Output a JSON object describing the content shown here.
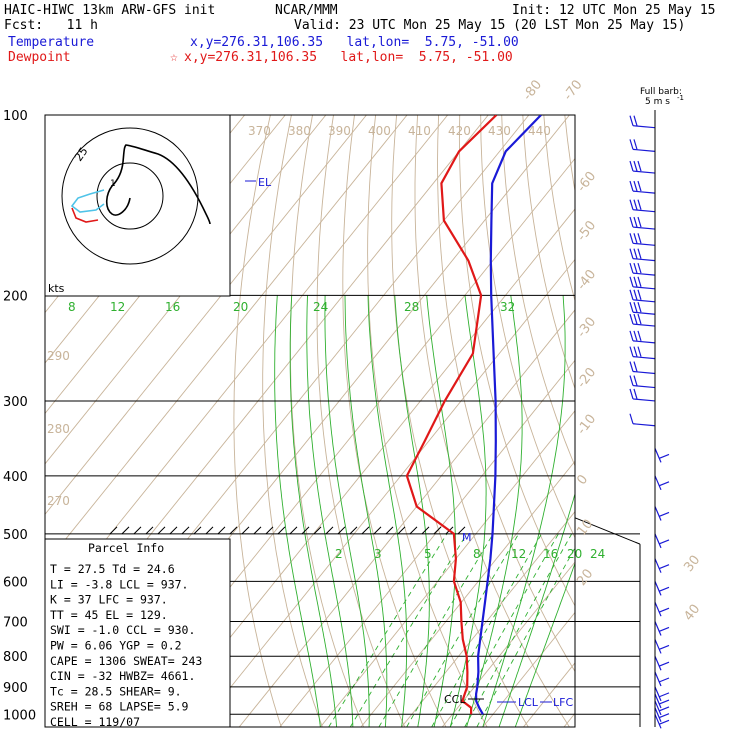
{
  "header": {
    "model": "HAIC-HIWC 13km ARW-GFS init",
    "center": "NCAR/MMM",
    "init": "Init: 12 UTC Mon 25 May 15",
    "fcst": "Fcst:   11 h",
    "valid": "Valid: 23 UTC Mon 25 May 15 (20 LST Mon 25 May 15)",
    "temp_label": "Temperature",
    "temp_loc": "x,y=276.31,106.35   lat,lon=  5.75, -51.00",
    "dew_label": "Dewpoint",
    "dew_loc": "x,y=276.31,106.35   lat,lon=  5.75, -51.00",
    "barb_title1": "Full barb:",
    "barb_title2": "5 m s",
    "barb_sup": "-1"
  },
  "hodograph": {
    "ring_label": "25",
    "units": "kts",
    "inner_label": "1"
  },
  "parcel": {
    "title": "Parcel Info",
    "rows": [
      "T  =   27.5 Td =  24.6",
      "LI =   -3.8 LCL =  937.",
      "K  =     37 LFC =  937.",
      "TT =     45 EL  =  129.",
      "SWI =  -1.0 CCL =  930.",
      "PW =   6.06 YGP =   0.2",
      "CAPE =  1306 SWEAT=  243",
      "CIN =   -32 HWBZ= 4661.",
      "Tc =   28.5 SHEAR=   9.",
      "SREH =   68 LAPSE=  5.9",
      "CELL = 119/07"
    ]
  },
  "markers": {
    "el": "EL",
    "ccl": "CCL",
    "lcl": "LCL",
    "lfc": "LFC",
    "m": "M"
  },
  "colors": {
    "temperature": "#1a1ad6",
    "dewpoint": "#e01818",
    "isotherm": "#c8b49a",
    "mixing_ratio": "#30b030",
    "saturated_adiabat": "#30b030",
    "dry_adiabat": "#c8b49a",
    "isobar": "#000000"
  },
  "chart_data": {
    "type": "line",
    "title": "",
    "xlabel": "",
    "ylabel": "",
    "y_scale": "log-pressure",
    "pressure_levels": [
      100,
      200,
      300,
      400,
      500,
      600,
      700,
      800,
      900,
      1000
    ],
    "isotherm_labels": [
      -80,
      -70,
      -60,
      -50,
      -40,
      -30,
      -20,
      -10,
      0,
      10,
      20,
      30,
      40
    ],
    "theta_labels": [
      370,
      380,
      390,
      400,
      410,
      420,
      430,
      440
    ],
    "theta_left_labels": [
      290,
      280,
      270
    ],
    "theta_e_labels": [
      8,
      12,
      16,
      20,
      24,
      28,
      32
    ],
    "mixing_ratio_labels": [
      2,
      3,
      5,
      8,
      12,
      16,
      20,
      24
    ],
    "series": [
      {
        "name": "Temperature",
        "pressure": [
          1000,
          975,
          950,
          925,
          900,
          850,
          800,
          750,
          700,
          650,
          600,
          550,
          500,
          450,
          400,
          350,
          300,
          250,
          200,
          175,
          150,
          130,
          115,
          100
        ],
        "temperature": [
          27.5,
          25.3,
          23.2,
          21.8,
          20.7,
          18.0,
          14.8,
          12.0,
          9.0,
          5.8,
          2.3,
          -1.5,
          -5.9,
          -11.0,
          -16.7,
          -23.5,
          -31.5,
          -41.4,
          -53.5,
          -60.5,
          -68.3,
          -75.5,
          -78.5,
          -77.0
        ]
      },
      {
        "name": "Dewpoint",
        "pressure": [
          1000,
          975,
          950,
          925,
          900,
          850,
          800,
          750,
          700,
          650,
          600,
          550,
          500,
          450,
          400,
          350,
          300,
          250,
          200,
          175,
          150,
          130,
          115,
          100
        ],
        "temperature": [
          24.6,
          23.3,
          19.8,
          19.0,
          18.2,
          15.3,
          12.0,
          7.7,
          3.8,
          -0.2,
          -6.0,
          -10.0,
          -15.4,
          -30.0,
          -38.5,
          -41.0,
          -44.0,
          -46.5,
          -56.0,
          -66.0,
          -80.0,
          -88.0,
          -90.0,
          -88.0
        ]
      }
    ],
    "wind_barbs": {
      "pressure": [
        105,
        115,
        125,
        135,
        145,
        155,
        165,
        175,
        185,
        195,
        205,
        215,
        225,
        240,
        255,
        270,
        285,
        300,
        330,
        360,
        400,
        450,
        500,
        550,
        600,
        650,
        700,
        750,
        800,
        850,
        900,
        925,
        950,
        975,
        1000
      ],
      "speed_ms": [
        10,
        10,
        15,
        15,
        15,
        15,
        15,
        15,
        15,
        15,
        15,
        15,
        15,
        15,
        15,
        10,
        10,
        10,
        5,
        5,
        5,
        5,
        5,
        5,
        5,
        5,
        5,
        5,
        5,
        5,
        5,
        5,
        5,
        5,
        5
      ],
      "direction_deg": [
        270,
        270,
        270,
        270,
        270,
        270,
        270,
        270,
        270,
        270,
        270,
        270,
        270,
        270,
        270,
        270,
        270,
        270,
        270,
        90,
        90,
        90,
        90,
        90,
        90,
        90,
        90,
        90,
        90,
        90,
        90,
        90,
        90,
        90,
        90
      ]
    }
  }
}
